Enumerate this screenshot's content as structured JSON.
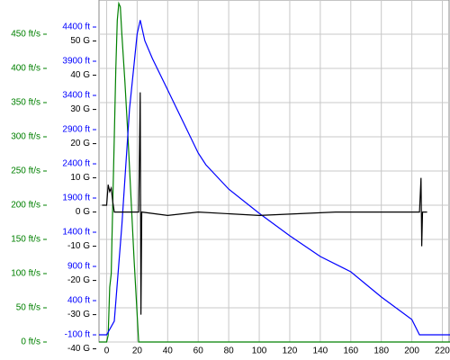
{
  "chart_data": {
    "type": "line",
    "xlim": [
      -5,
      225
    ],
    "xticks": [
      0,
      20,
      40,
      60,
      80,
      100,
      120,
      140,
      160,
      180,
      200,
      220
    ],
    "ylim": [
      0,
      500
    ],
    "yticks": [
      {
        "value": 0,
        "label": "0 ft/s"
      },
      {
        "value": 50,
        "label": "50 ft/s"
      },
      {
        "value": 100,
        "label": "100 ft/s"
      },
      {
        "value": 150,
        "label": "150 ft/s"
      },
      {
        "value": 200,
        "label": "200 ft/s"
      },
      {
        "value": 250,
        "label": "250 ft/s"
      },
      {
        "value": 300,
        "label": "300 ft/s"
      },
      {
        "value": 350,
        "label": "350 ft/s"
      },
      {
        "value": 400,
        "label": "400 ft/s"
      },
      {
        "value": 450,
        "label": "450 ft/s"
      }
    ],
    "y2lim": [
      -205,
      4795
    ],
    "y2ticks": [
      {
        "value": -100,
        "label": "-100 ft"
      },
      {
        "value": 400,
        "label": "400 ft"
      },
      {
        "value": 900,
        "label": "900 ft"
      },
      {
        "value": 1400,
        "label": "1400 ft"
      },
      {
        "value": 1900,
        "label": "1900 ft"
      },
      {
        "value": 2400,
        "label": "2400 ft"
      },
      {
        "value": 2900,
        "label": "2900 ft"
      },
      {
        "value": 3400,
        "label": "3400 ft"
      },
      {
        "value": 3900,
        "label": "3900 ft"
      },
      {
        "value": 4400,
        "label": "4400 ft"
      }
    ],
    "y3lim": [
      -38,
      62
    ],
    "y3ticks": [
      {
        "value": -40,
        "label": "-40 G"
      },
      {
        "value": -30,
        "label": "-30 G"
      },
      {
        "value": -20,
        "label": "-20 G"
      },
      {
        "value": -10,
        "label": "-10 G"
      },
      {
        "value": 0,
        "label": "0 G"
      },
      {
        "value": 10,
        "label": "10 G"
      },
      {
        "value": 20,
        "label": "20 G"
      },
      {
        "value": 30,
        "label": "30 G"
      },
      {
        "value": 40,
        "label": "40 G"
      },
      {
        "value": 50,
        "label": "50 G"
      }
    ],
    "grid": true,
    "series": [
      {
        "color": "#008000",
        "axis": "y",
        "x": [
          -5,
          0,
          1,
          2,
          3,
          3.5,
          5,
          6,
          7,
          8,
          9,
          10,
          12,
          14,
          16,
          18,
          20,
          21,
          225
        ],
        "values": [
          0,
          0,
          10,
          80,
          100,
          150,
          300,
          400,
          470,
          495,
          490,
          450,
          380,
          300,
          210,
          120,
          40,
          0,
          0
        ]
      },
      {
        "color": "#0000ff",
        "axis": "y2",
        "x": [
          -5,
          0,
          5,
          10,
          15,
          20,
          22,
          25,
          30,
          40,
          60,
          65,
          80,
          100,
          120,
          140,
          160,
          180,
          200,
          205,
          225
        ],
        "values": [
          -100,
          -100,
          100,
          1500,
          3200,
          4300,
          4500,
          4200,
          3940,
          3480,
          2558,
          2387,
          2030,
          1676,
          1347,
          1045,
          821,
          453,
          124,
          -100,
          -100
        ]
      },
      {
        "color": "#000000",
        "axis": "y3",
        "x": [
          -3,
          0,
          1,
          2,
          3,
          4,
          5,
          8,
          21,
          22,
          22.5,
          23,
          40,
          60,
          100,
          150,
          205,
          206,
          206.5,
          207,
          210
        ],
        "values": [
          2,
          2,
          8,
          6,
          7,
          3,
          0,
          0,
          0,
          35,
          -30,
          0,
          -1,
          0,
          -1,
          0,
          0,
          10,
          -10,
          0,
          0
        ]
      }
    ]
  }
}
